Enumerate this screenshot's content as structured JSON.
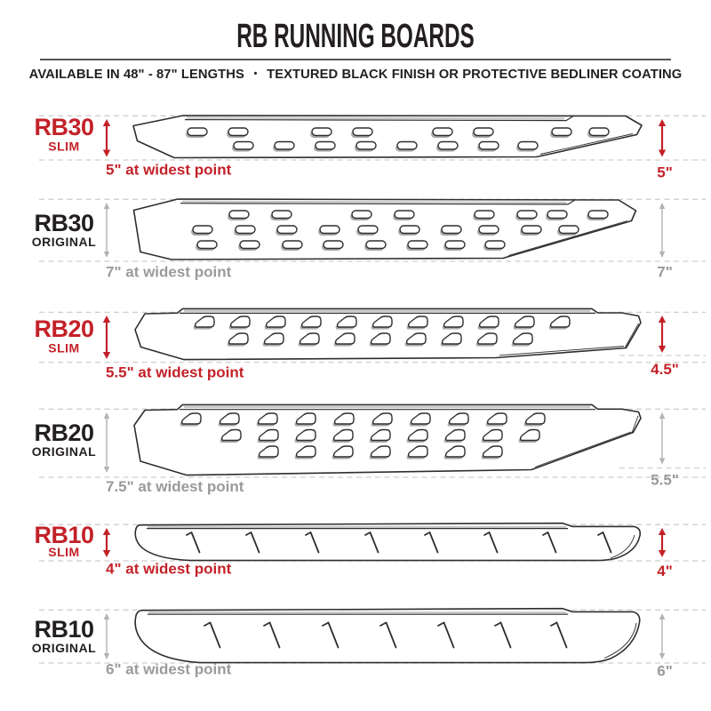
{
  "header": {
    "title": "RB RUNNING BOARDS",
    "subtitle_left": "AVAILABLE IN 48\" - 87\" LENGTHS",
    "subtitle_separator": "•",
    "subtitle_right": "TEXTURED BLACK FINISH OR PROTECTIVE BEDLINER COATING"
  },
  "colors": {
    "red": "#c32128",
    "black": "#231f20",
    "gray_text": "#9a9a9a",
    "gray_arrow": "#b2b2b2",
    "dashed": "#cfcfcf",
    "outline": "#302d2e",
    "divider": "#55565a"
  },
  "rows": [
    {
      "model": "RB30",
      "variant": "SLIM",
      "accent": "red",
      "caption": "5\" at widest point",
      "right_label": "5\""
    },
    {
      "model": "RB30",
      "variant": "ORIGINAL",
      "accent": "black",
      "caption": "7\" at widest point",
      "right_label": "7\""
    },
    {
      "model": "RB20",
      "variant": "SLIM",
      "accent": "red",
      "caption": "5.5\" at widest point",
      "right_label": "4.5\""
    },
    {
      "model": "RB20",
      "variant": "ORIGINAL",
      "accent": "black",
      "caption": "7.5\" at widest point",
      "right_label": "5.5\""
    },
    {
      "model": "RB10",
      "variant": "SLIM",
      "accent": "red",
      "caption": "4\" at widest point",
      "right_label": "4\""
    },
    {
      "model": "RB10",
      "variant": "ORIGINAL",
      "accent": "black",
      "caption": "6\" at widest point",
      "right_label": "6\""
    }
  ]
}
